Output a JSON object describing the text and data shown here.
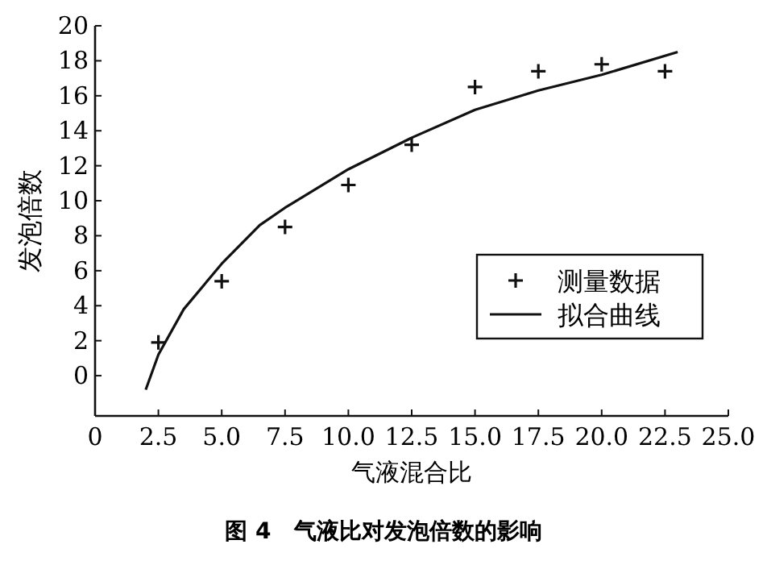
{
  "chart_data": {
    "type": "scatter",
    "title": "图 4　气液比对发泡倍数的影响",
    "xlabel": "气液混合比",
    "ylabel": "发泡倍数",
    "xlim": [
      0,
      25
    ],
    "xticks": [
      0,
      {
        "value": 2.5,
        "label": "2.5"
      },
      {
        "value": 5,
        "label": "5.0"
      },
      {
        "value": 7.5,
        "label": "7.5"
      },
      {
        "value": 10,
        "label": "10.0"
      },
      {
        "value": 12.5,
        "label": "12.5"
      },
      {
        "value": 15,
        "label": "15.0"
      },
      {
        "value": 17.5,
        "label": "17.5"
      },
      {
        "value": 20,
        "label": "20.0"
      },
      {
        "value": 22.5,
        "label": "22.5"
      },
      {
        "value": 25,
        "label": "25.0"
      }
    ],
    "ylim": [
      -2.3,
      20
    ],
    "yticks": [
      0,
      2,
      4,
      6,
      8,
      10,
      12,
      14,
      16,
      18,
      20
    ],
    "legend": "right",
    "grid": false,
    "series": [
      {
        "name": "测量数据",
        "marker": "cross",
        "color": "#111111",
        "x": [
          2.5,
          5,
          7.5,
          10,
          12.5,
          15,
          17.5,
          20,
          22.5
        ],
        "values": [
          1.9,
          5.4,
          8.5,
          10.9,
          13.2,
          16.5,
          17.4,
          17.8,
          17.4
        ]
      },
      {
        "name": "拟合曲线",
        "type": "line",
        "marker": "none",
        "color": "#111111",
        "x": [
          2,
          2.5,
          3.5,
          5,
          6.5,
          7.5,
          10,
          12.5,
          15,
          17.5,
          20,
          23
        ],
        "values": [
          -0.8,
          1.2,
          3.8,
          6.4,
          8.6,
          9.6,
          11.8,
          13.6,
          15.2,
          16.3,
          17.2,
          18.5
        ]
      }
    ]
  }
}
